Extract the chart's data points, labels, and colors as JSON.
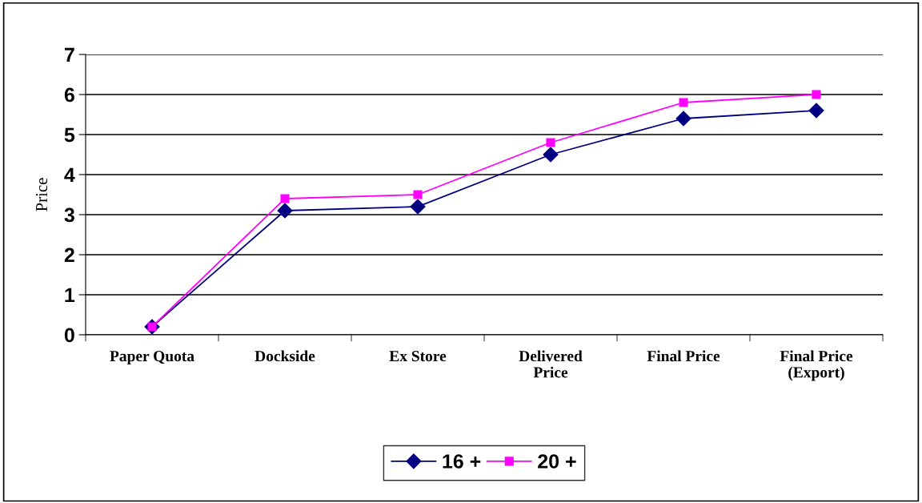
{
  "chart_data": {
    "type": "line",
    "ylabel": "Price",
    "categories": [
      "Paper Quota",
      "Dockside",
      "Ex Store",
      "Delivered\nPrice",
      "Final Price",
      "Final Price\n(Export)"
    ],
    "series": [
      {
        "name": "16 +",
        "color": "#000080",
        "marker": "diamond",
        "values": [
          0.2,
          3.1,
          3.2,
          4.5,
          5.4,
          5.6
        ]
      },
      {
        "name": "20 +",
        "color": "#ff00ff",
        "marker": "square",
        "values": [
          0.2,
          3.4,
          3.5,
          4.8,
          5.8,
          6.0
        ]
      }
    ],
    "ylim": [
      0,
      7
    ],
    "yticks": [
      0,
      1,
      2,
      3,
      4,
      5,
      6,
      7
    ],
    "grid": "y",
    "legend": "bottom"
  }
}
